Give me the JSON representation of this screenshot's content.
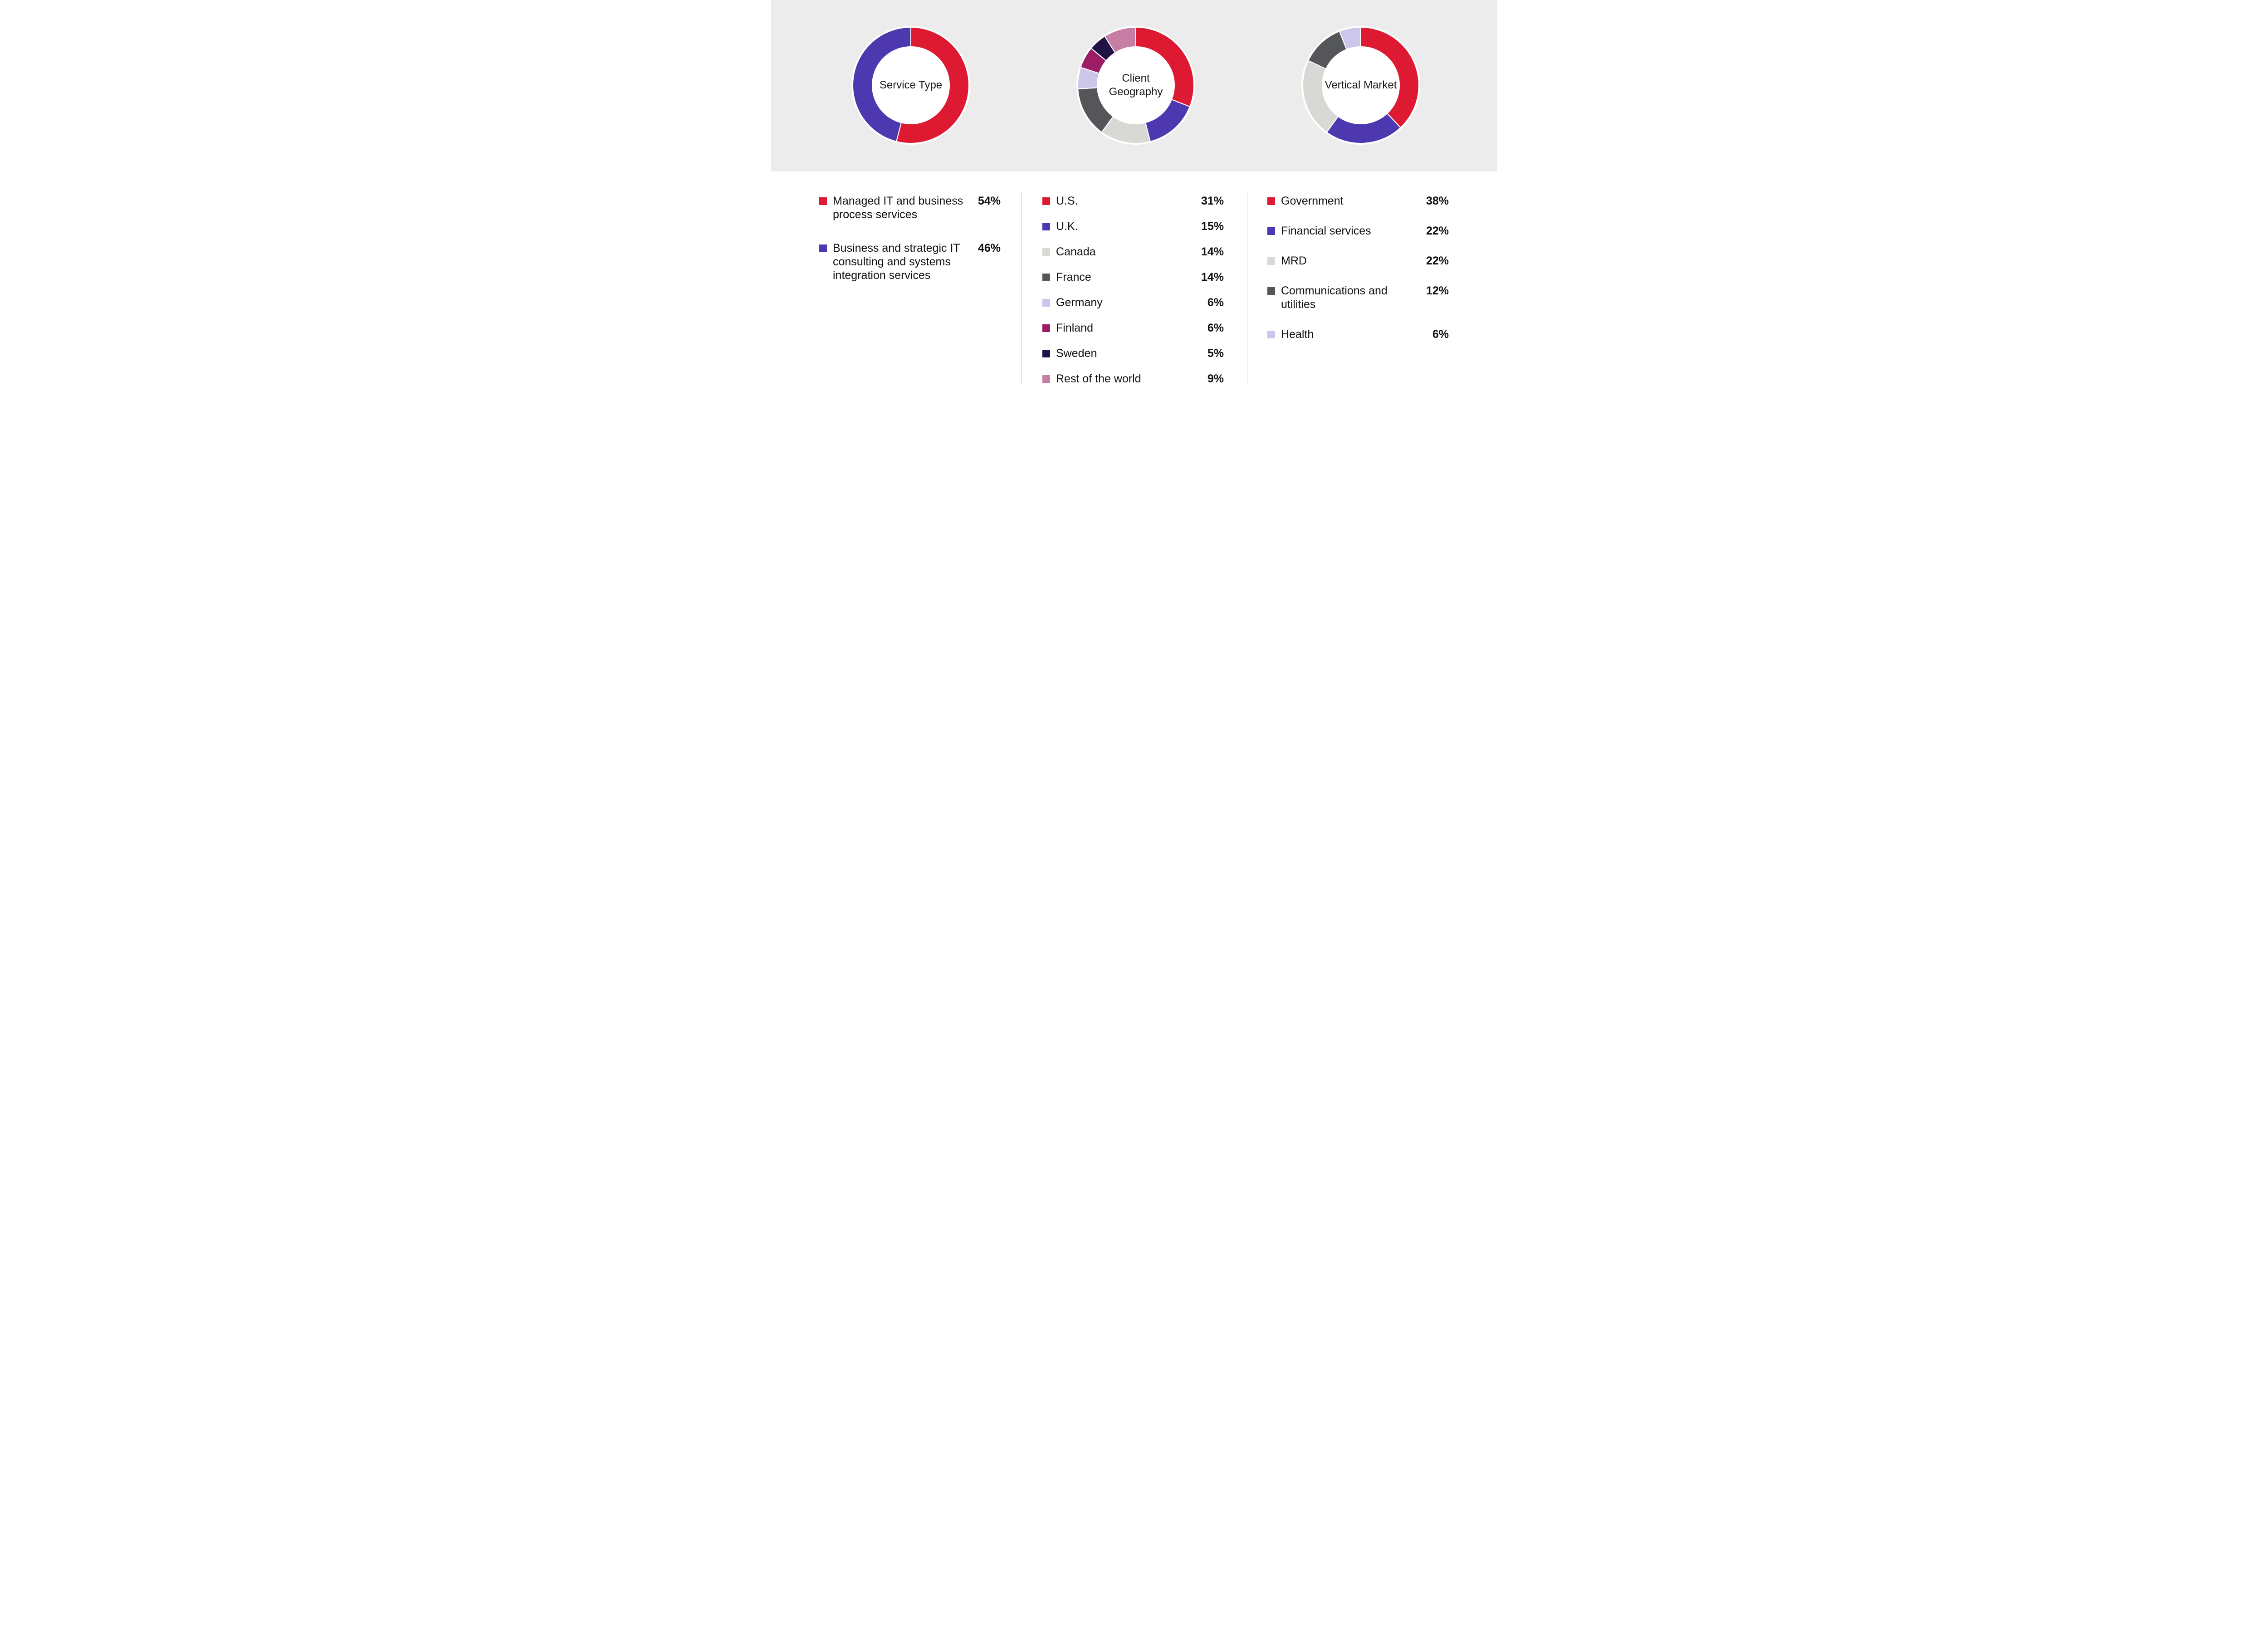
{
  "page": {
    "top_band_color": "#ECECEC",
    "background_color": "#FFFFFF",
    "text_color": "#1A1A1A"
  },
  "chart_data": [
    {
      "type": "pie",
      "variant": "donut",
      "title": "Service Type",
      "title_lines": [
        "Service Type"
      ],
      "legend_position": "below",
      "slices": [
        {
          "label": "Managed IT and business process services",
          "value": 54,
          "pct": "54%",
          "color": "#DE1A32"
        },
        {
          "label": "Business and strategic IT consulting and systems integration services",
          "value": 46,
          "pct": "46%",
          "color": "#4E38AF"
        }
      ]
    },
    {
      "type": "pie",
      "variant": "donut",
      "title": "Client Geography",
      "title_lines": [
        "Client",
        "Geography"
      ],
      "legend_position": "below",
      "slices": [
        {
          "label": "U.S.",
          "value": 31,
          "pct": "31%",
          "color": "#DE1A32"
        },
        {
          "label": "U.K.",
          "value": 15,
          "pct": "15%",
          "color": "#4E38AF"
        },
        {
          "label": "Canada",
          "value": 14,
          "pct": "14%",
          "color": "#D8D8D5"
        },
        {
          "label": "France",
          "value": 14,
          "pct": "14%",
          "color": "#55565A"
        },
        {
          "label": "Germany",
          "value": 6,
          "pct": "6%",
          "color": "#CCC6EA"
        },
        {
          "label": "Finland",
          "value": 6,
          "pct": "6%",
          "color": "#9D1D64"
        },
        {
          "label": "Sweden",
          "value": 5,
          "pct": "5%",
          "color": "#201244"
        },
        {
          "label": "Rest of the world",
          "value": 9,
          "pct": "9%",
          "color": "#C67EA5"
        }
      ]
    },
    {
      "type": "pie",
      "variant": "donut",
      "title": "Vertical Market",
      "title_lines": [
        "Vertical Market"
      ],
      "legend_position": "below",
      "slices": [
        {
          "label": "Government",
          "value": 38,
          "pct": "38%",
          "color": "#DE1A32"
        },
        {
          "label": "Financial services",
          "value": 22,
          "pct": "22%",
          "color": "#4E38AF"
        },
        {
          "label": "MRD",
          "value": 22,
          "pct": "22%",
          "color": "#D8D8D5"
        },
        {
          "label": "Communications and utilities",
          "value": 12,
          "pct": "12%",
          "color": "#55565A"
        },
        {
          "label": "Health",
          "value": 6,
          "pct": "6%",
          "color": "#CCC6EA"
        }
      ]
    }
  ]
}
